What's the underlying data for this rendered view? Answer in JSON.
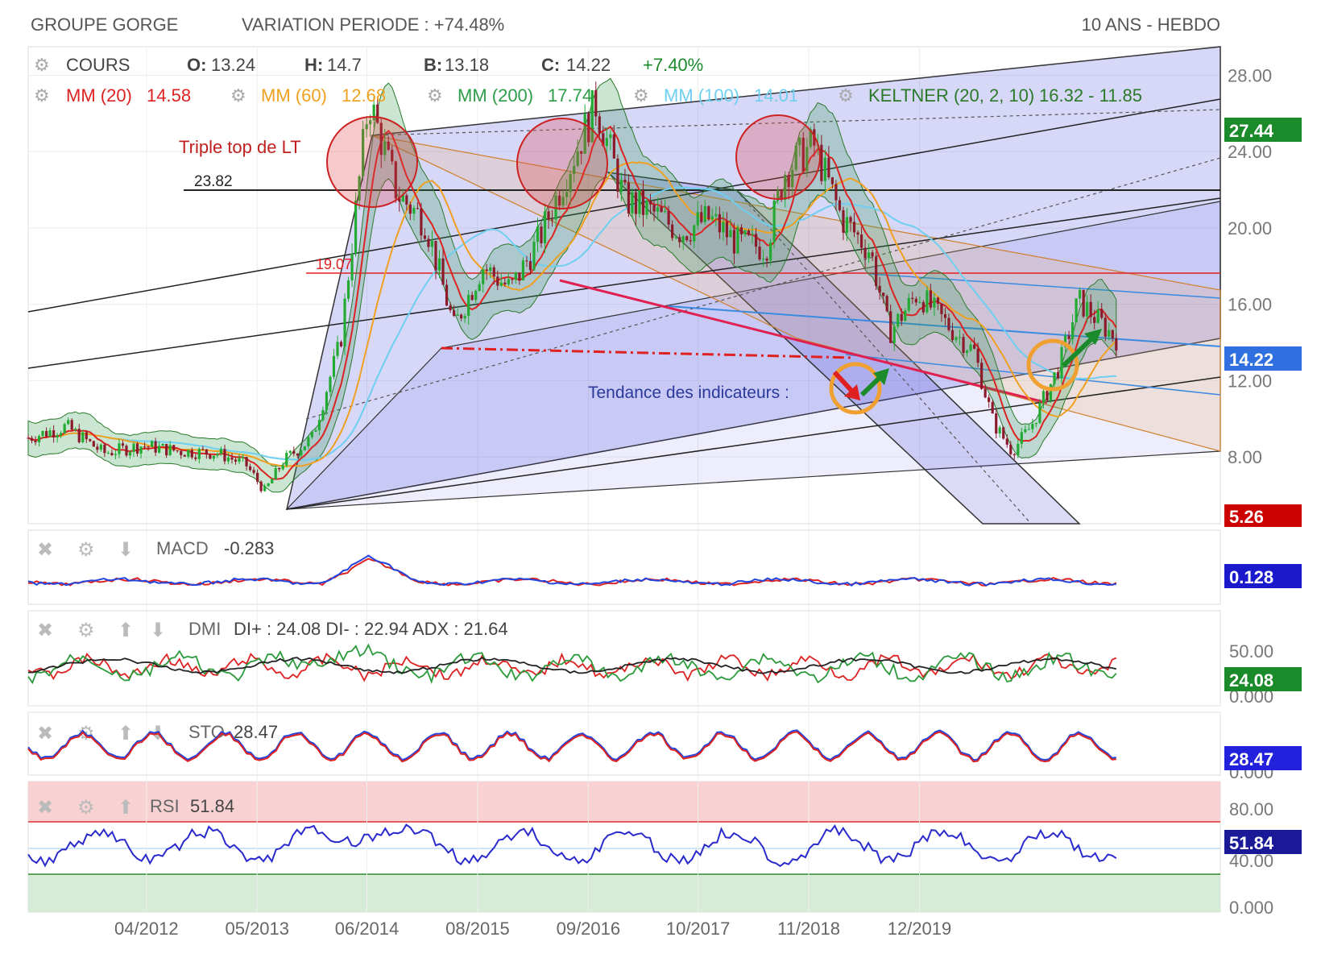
{
  "header": {
    "ticker": "GROUPE GORGE",
    "variation": "VARIATION PERIODE : +74.48%",
    "period": "10 ANS - HEBDO"
  },
  "legend": {
    "cours_label": "COURS",
    "open_label": "O:",
    "open": "13.24",
    "high_label": "H:",
    "high": "14.7",
    "low_label": "B:",
    "low": "13.18",
    "close_label": "C:",
    "close": "14.22",
    "change": "+7.40%",
    "mm20": "MM (20)",
    "mm20_val": "14.58",
    "mm60": "MM (60)",
    "mm60_val": "12.68",
    "mm200": "MM (200)",
    "mm200_val": "17.74",
    "mm100": "MM (100)",
    "mm100_val": "14.01",
    "keltner": "KELTNER (20, 2, 10)",
    "keltner_val": "16.32 - 11.85"
  },
  "annotations": {
    "triple_top": "Triple top de LT",
    "level_high": "23.82",
    "level_mid": "19.07",
    "tendance": "Tendance des indicateurs :"
  },
  "colors": {
    "mm20": "#dd2222",
    "mm60": "#f0a020",
    "mm200": "#2e9d4a",
    "mm100": "#6ecff0",
    "keltner": "#2a7a2a",
    "candle_up": "#22aa33",
    "candle_down": "#8b1a2a",
    "price_badge": "#2f6fe0",
    "max_badge": "#1a8a2a",
    "min_badge": "#cc0000",
    "macd_badge": "#1a1acc",
    "rsi_badge": "#1a1a99",
    "sto_badge": "#2222dd"
  },
  "panels": {
    "macd": {
      "label": "MACD",
      "value": "-0.283",
      "badge": "0.128"
    },
    "dmi": {
      "label": "DMI",
      "value": "DI+ : 24.08 DI- : 22.94 ADX : 21.64",
      "badge": "24.08",
      "ticks": [
        "50.00",
        "0.000"
      ]
    },
    "sto": {
      "label": "STO",
      "value": "28.47",
      "badge": "28.47",
      "ticks": [
        "0.000"
      ]
    },
    "rsi": {
      "label": "RSI",
      "value": "51.84",
      "badge": "51.84",
      "ticks": [
        "80.00",
        "40.00",
        "0.000"
      ]
    }
  },
  "chart_data": {
    "type": "candlestick",
    "title": "GROUPE GORGE",
    "x_tick_labels": [
      "04/2012",
      "05/2013",
      "06/2014",
      "08/2015",
      "09/2016",
      "10/2017",
      "11/2018",
      "12/2019"
    ],
    "y_tick_labels": [
      "28.00",
      "24.00",
      "20.00",
      "16.00",
      "12.00",
      "8.00"
    ],
    "y_ticks": [
      28,
      24,
      20,
      16,
      12,
      8
    ],
    "ylim": [
      4.5,
      29.5
    ],
    "badges": {
      "max": "27.44",
      "last": "14.22",
      "min": "5.26"
    },
    "horizontal_levels": [
      23.82,
      19.07
    ],
    "price_path": [
      [
        2011.0,
        9.0
      ],
      [
        2011.4,
        9.6
      ],
      [
        2011.8,
        8.2
      ],
      [
        2012.2,
        8.6
      ],
      [
        2012.6,
        8.3
      ],
      [
        2013.0,
        8.2
      ],
      [
        2013.3,
        7.6
      ],
      [
        2013.5,
        6.2
      ],
      [
        2013.7,
        7.8
      ],
      [
        2014.0,
        9.0
      ],
      [
        2014.3,
        14.0
      ],
      [
        2014.6,
        26.8
      ],
      [
        2014.9,
        21.8
      ],
      [
        2015.2,
        20.3
      ],
      [
        2015.5,
        14.8
      ],
      [
        2015.8,
        18.0
      ],
      [
        2016.1,
        16.8
      ],
      [
        2016.4,
        19.4
      ],
      [
        2016.7,
        23.0
      ],
      [
        2017.0,
        26.5
      ],
      [
        2017.3,
        21.5
      ],
      [
        2017.6,
        20.8
      ],
      [
        2017.9,
        19.8
      ],
      [
        2018.2,
        20.5
      ],
      [
        2018.5,
        19.2
      ],
      [
        2018.8,
        19.0
      ],
      [
        2019.0,
        23.0
      ],
      [
        2019.3,
        24.4
      ],
      [
        2019.6,
        20.5
      ],
      [
        2019.9,
        18.8
      ],
      [
        2020.1,
        14.5
      ],
      [
        2020.4,
        16.6
      ],
      [
        2020.7,
        15.0
      ],
      [
        2021.0,
        13.5
      ],
      [
        2021.2,
        9.8
      ],
      [
        2021.4,
        8.3
      ],
      [
        2021.6,
        9.6
      ],
      [
        2021.9,
        12.8
      ],
      [
        2022.1,
        16.2
      ],
      [
        2022.3,
        15.2
      ],
      [
        2022.5,
        14.2
      ]
    ]
  }
}
